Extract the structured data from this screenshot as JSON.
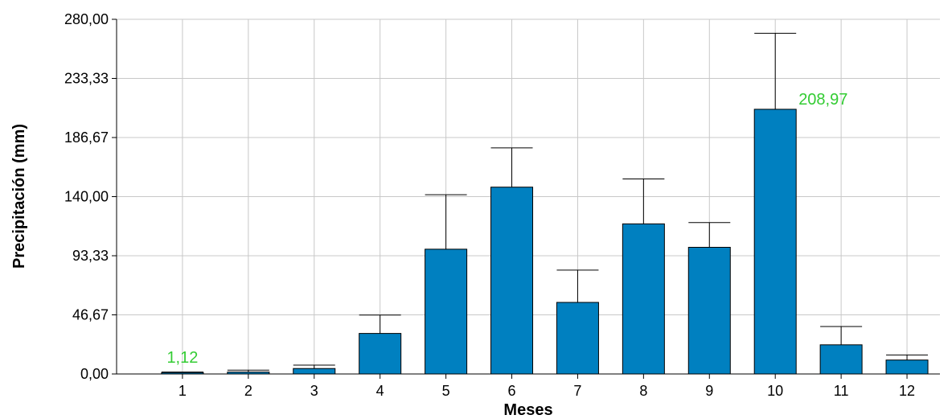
{
  "chart_data": {
    "type": "bar",
    "xlabel": "Meses",
    "ylabel": "Precipitación (mm)",
    "categories": [
      "1",
      "2",
      "3",
      "4",
      "5",
      "6",
      "7",
      "8",
      "9",
      "10",
      "11",
      "12"
    ],
    "values": [
      1.12,
      1.5,
      4.3,
      32.0,
      98.5,
      147.5,
      56.5,
      118.5,
      100.0,
      208.97,
      23.0,
      11.0
    ],
    "error_upper": [
      1.5,
      3.0,
      7.0,
      46.5,
      141.5,
      178.5,
      82.0,
      154.0,
      119.5,
      269.0,
      37.5,
      15.0
    ],
    "ylim": [
      0,
      280
    ],
    "y_ticks": [
      "0,00",
      "46,67",
      "93,33",
      "140,00",
      "186,67",
      "233,33",
      "280,00"
    ],
    "y_tick_values": [
      0,
      46.67,
      93.33,
      140,
      186.67,
      233.33,
      280
    ],
    "data_labels": [
      {
        "index": 0,
        "text": "1,12"
      },
      {
        "index": 9,
        "text": "208,97"
      }
    ],
    "grid": true,
    "colors": {
      "bar_fill": "#0080c0",
      "bar_stroke": "#000000",
      "grid": "#c8c8c8",
      "error_bar": "#000000",
      "data_label": "#33cc33"
    }
  }
}
